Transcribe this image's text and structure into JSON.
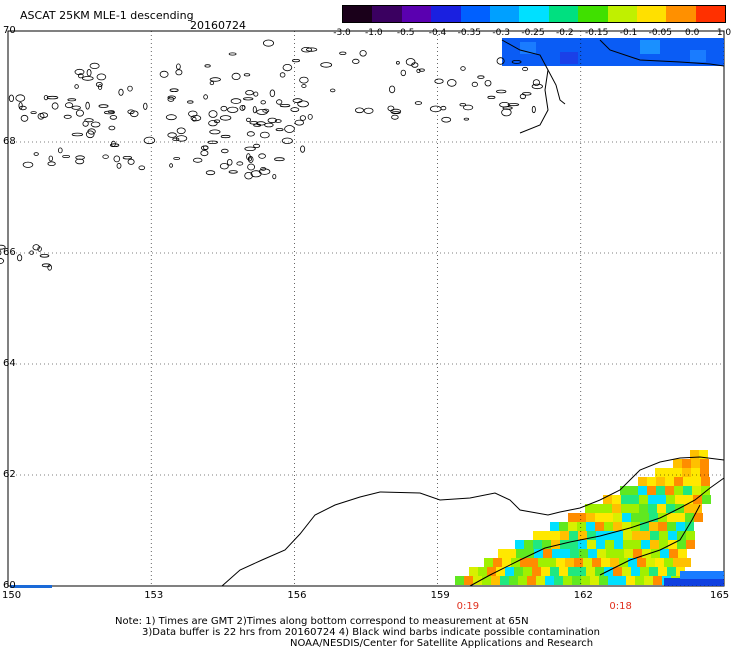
{
  "header": {
    "title": "ASCAT 25KM MLE-1 descending",
    "date": "20160724"
  },
  "colorbar": {
    "labels": [
      "-3.0",
      "-1.0",
      "-0.5",
      "-0.4",
      "-0.35",
      "-0.3",
      "-0.25",
      "-0.2",
      "-0.15",
      "-0.1",
      "-0.05",
      "0.0",
      "1.0"
    ],
    "colors": [
      "#1a001a",
      "#3a0060",
      "#5a00b0",
      "#1a20e0",
      "#0060ff",
      "#00a0ff",
      "#00e0ff",
      "#00e080",
      "#40e000",
      "#c0f000",
      "#ffe000",
      "#ff9000",
      "#ff3000"
    ]
  },
  "chart_data": {
    "type": "heatmap",
    "xlim": [
      150,
      165
    ],
    "ylim": [
      60,
      70
    ],
    "x_ticks": [
      "150",
      "153",
      "156",
      "159",
      "162",
      "165"
    ],
    "y_ticks": [
      "60",
      "62",
      "64",
      "66",
      "68",
      "70"
    ],
    "grid": true,
    "time_labels": [
      {
        "lon": 159.65,
        "text": "0:19"
      },
      {
        "lon": 162.85,
        "text": "0:18"
      }
    ]
  },
  "notes": {
    "line1": "Note: 1) Times are GMT 2)Times along bottom correspond to measurement at 65N",
    "line2": "3)Data buffer is 22 hrs from 20160724 4) Black wind barbs indicate possible contamination",
    "line3": "NOAA/NESDIS/Center for Satellite Applications and Research"
  }
}
